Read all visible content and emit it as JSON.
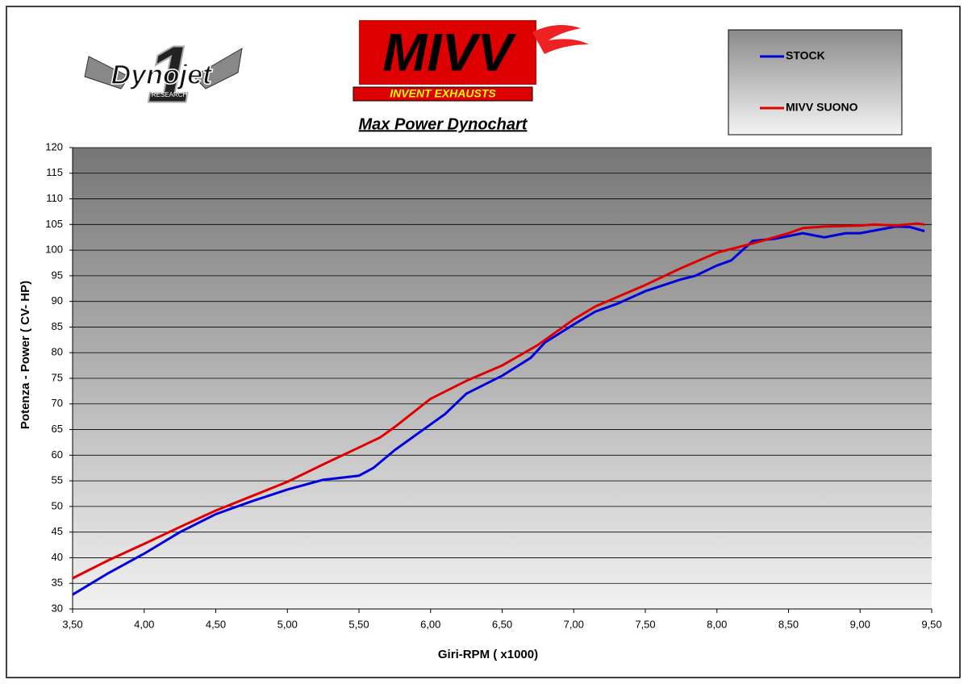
{
  "chart_data": {
    "type": "line",
    "title": "Max Power Dynochart",
    "logo_left": "Dynojet",
    "logo_left_number": "1",
    "logo_left_tagline": "RESEARCH",
    "logo_right": "MIVV",
    "logo_right_tagline": "INVENT EXHAUSTS",
    "x_label": "Giri-RPM ( x1000)",
    "y_label": "Potenza - Power ( CV- HP)",
    "xlim": [
      3.5,
      9.5
    ],
    "xticks": [
      {
        "value": 3.5,
        "label": "3,50"
      },
      {
        "value": 4.0,
        "label": "4,00"
      },
      {
        "value": 4.5,
        "label": "4,50"
      },
      {
        "value": 5.0,
        "label": "5,00"
      },
      {
        "value": 5.5,
        "label": "5,50"
      },
      {
        "value": 6.0,
        "label": "6,00"
      },
      {
        "value": 6.5,
        "label": "6,50"
      },
      {
        "value": 7.0,
        "label": "7,00"
      },
      {
        "value": 7.5,
        "label": "7,50"
      },
      {
        "value": 8.0,
        "label": "8,00"
      },
      {
        "value": 8.5,
        "label": "8,50"
      },
      {
        "value": 9.0,
        "label": "9,00"
      },
      {
        "value": 9.5,
        "label": "9,50"
      }
    ],
    "ylim": [
      30,
      120
    ],
    "yticks": [
      30,
      35,
      40,
      45,
      50,
      55,
      60,
      65,
      70,
      75,
      80,
      85,
      90,
      95,
      100,
      105,
      110,
      115,
      120
    ],
    "grid": true,
    "legend_position": "top-right",
    "series": [
      {
        "name": "STOCK",
        "color": "#0000dd",
        "x": [
          3.5,
          3.75,
          4.0,
          4.25,
          4.5,
          4.75,
          5.0,
          5.25,
          5.5,
          5.6,
          5.75,
          6.0,
          6.1,
          6.25,
          6.5,
          6.7,
          6.8,
          7.0,
          7.15,
          7.3,
          7.5,
          7.75,
          7.85,
          8.0,
          8.1,
          8.25,
          8.4,
          8.6,
          8.75,
          8.9,
          9.0,
          9.25,
          9.35,
          9.45
        ],
        "values": [
          32.8,
          37,
          40.8,
          45,
          48.5,
          51,
          53.3,
          55.2,
          56,
          57.5,
          61,
          66,
          68,
          72,
          75.5,
          79,
          82,
          85.5,
          88,
          89.5,
          92,
          94.3,
          95,
          97,
          98,
          101.8,
          102.2,
          103.3,
          102.5,
          103.3,
          103.3,
          104.6,
          104.5,
          103.7
        ]
      },
      {
        "name": "MIVV SUONO",
        "color": "#e00000",
        "x": [
          3.5,
          3.75,
          4.0,
          4.25,
          4.5,
          4.75,
          5.0,
          5.25,
          5.5,
          5.65,
          5.75,
          6.0,
          6.25,
          6.5,
          6.75,
          7.0,
          7.15,
          7.5,
          7.75,
          8.0,
          8.25,
          8.5,
          8.6,
          8.75,
          9.0,
          9.1,
          9.25,
          9.4,
          9.45
        ],
        "values": [
          36,
          39.5,
          42.7,
          46,
          49.2,
          52,
          54.8,
          58.2,
          61.5,
          63.5,
          65.5,
          71,
          74.5,
          77.5,
          81.5,
          86.5,
          89,
          93.2,
          96.5,
          99.5,
          101.3,
          103.3,
          104.3,
          104.6,
          104.8,
          105,
          104.8,
          105.2,
          105
        ]
      }
    ]
  }
}
